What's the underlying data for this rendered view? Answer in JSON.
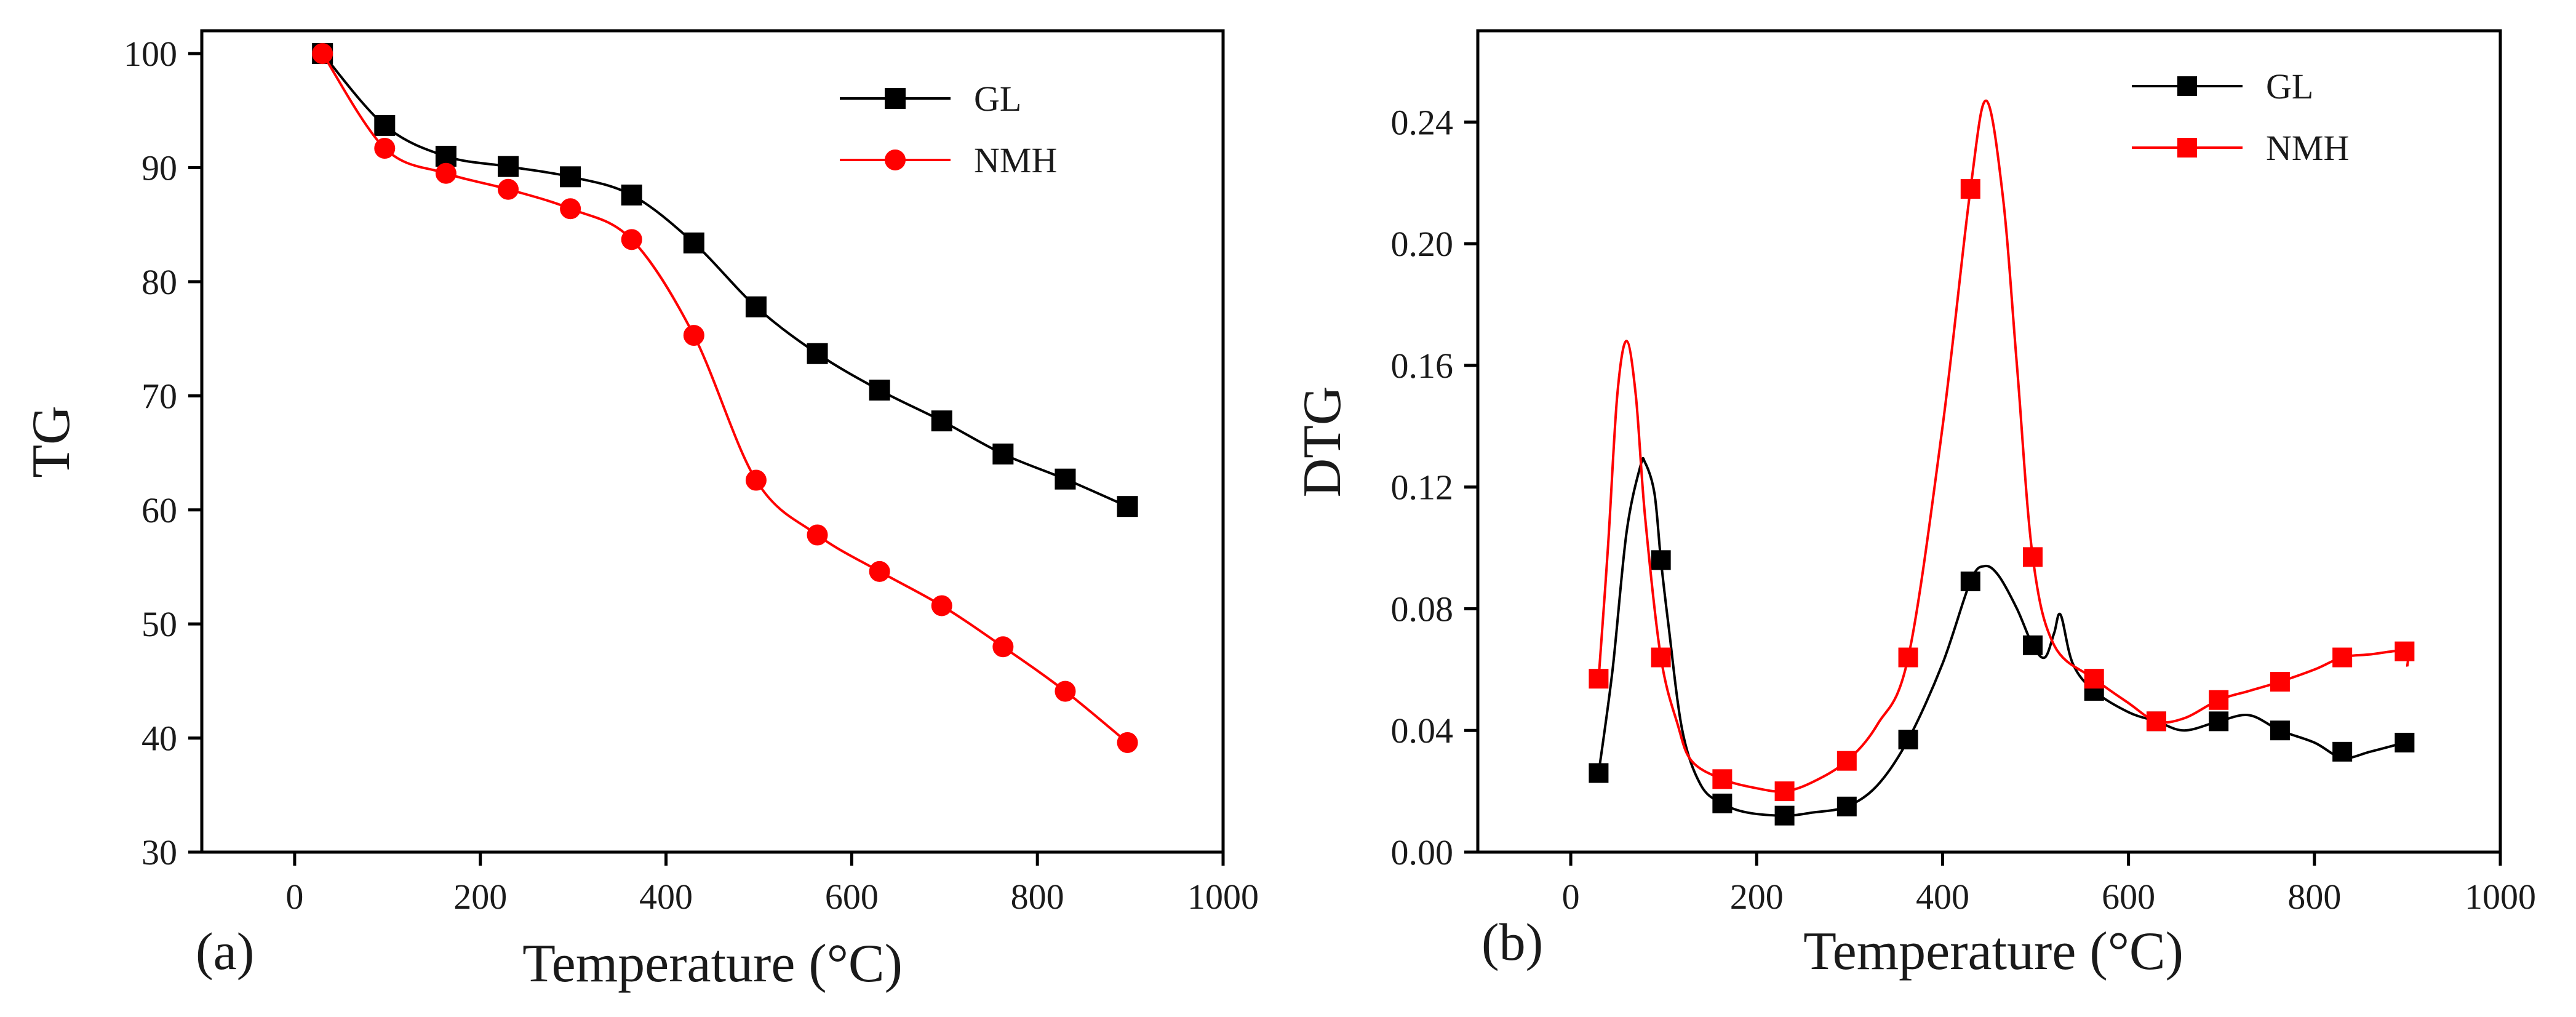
{
  "chart_data": [
    {
      "id": "a",
      "type": "line",
      "panel_label": "(a)",
      "xlabel": "Temperature (°C)",
      "ylabel": "TG",
      "xlim": [
        -100,
        1000
      ],
      "ylim": [
        30,
        102
      ],
      "x_ticks": [
        0,
        200,
        400,
        600,
        800,
        1000
      ],
      "y_ticks": [
        30,
        40,
        50,
        60,
        70,
        80,
        90,
        100
      ],
      "legend_position": "top-right",
      "series": [
        {
          "name": "GL",
          "color": "#000000",
          "marker": "square",
          "x": [
            30,
            97,
            163,
            230,
            297,
            363,
            430,
            497,
            563,
            630,
            697,
            763,
            830,
            897
          ],
          "y": [
            100,
            93.7,
            91.0,
            90.1,
            89.2,
            87.6,
            83.4,
            77.8,
            73.7,
            70.5,
            67.8,
            64.9,
            62.7,
            60.3
          ]
        },
        {
          "name": "NMH",
          "color": "#ff0000",
          "marker": "circle",
          "x": [
            30,
            97,
            163,
            230,
            297,
            363,
            430,
            497,
            563,
            630,
            697,
            763,
            830,
            897
          ],
          "y": [
            100,
            91.7,
            89.5,
            88.1,
            86.4,
            83.7,
            75.3,
            62.6,
            57.8,
            54.6,
            51.6,
            48.0,
            44.1,
            39.6
          ]
        }
      ]
    },
    {
      "id": "b",
      "type": "line",
      "panel_label": "(b)",
      "xlabel": "Temperature (°C)",
      "ylabel": "DTG",
      "xlim": [
        -100,
        1000
      ],
      "ylim": [
        0,
        0.27
      ],
      "x_ticks": [
        0,
        200,
        400,
        600,
        800,
        1000
      ],
      "y_ticks": [
        0.0,
        0.04,
        0.08,
        0.12,
        0.16,
        0.2,
        0.24
      ],
      "y_tick_labels": [
        "0.00",
        "0.04",
        "0.08",
        "0.12",
        "0.16",
        "0.20",
        "0.24"
      ],
      "legend_position": "top-right",
      "series": [
        {
          "name": "GL",
          "color": "#000000",
          "marker": "square",
          "x": [
            30,
            97,
            163,
            230,
            297,
            363,
            430,
            497,
            563,
            630,
            697,
            763,
            830,
            897
          ],
          "y": [
            0.026,
            0.096,
            0.016,
            0.012,
            0.015,
            0.037,
            0.089,
            0.068,
            0.053,
            0.043,
            0.043,
            0.04,
            0.033,
            0.036
          ],
          "curve_x": [
            30,
            45,
            60,
            75,
            80,
            90,
            97,
            105,
            120,
            140,
            163,
            190,
            230,
            260,
            297,
            330,
            363,
            400,
            430,
            445,
            460,
            480,
            497,
            510,
            520,
            527,
            540,
            563,
            600,
            630,
            660,
            697,
            730,
            763,
            800,
            830,
            860,
            897
          ],
          "curve_y": [
            0.026,
            0.06,
            0.105,
            0.127,
            0.128,
            0.118,
            0.096,
            0.075,
            0.04,
            0.022,
            0.016,
            0.013,
            0.012,
            0.013,
            0.015,
            0.022,
            0.037,
            0.062,
            0.089,
            0.094,
            0.091,
            0.08,
            0.068,
            0.064,
            0.072,
            0.078,
            0.062,
            0.053,
            0.046,
            0.043,
            0.04,
            0.043,
            0.045,
            0.04,
            0.036,
            0.031,
            0.033,
            0.036
          ]
        },
        {
          "name": "NMH",
          "color": "#ff0000",
          "marker": "square",
          "x": [
            30,
            97,
            163,
            230,
            297,
            363,
            430,
            497,
            563,
            630,
            697,
            763,
            830,
            897
          ],
          "y": [
            0.057,
            0.064,
            0.024,
            0.02,
            0.03,
            0.064,
            0.218,
            0.097,
            0.057,
            0.043,
            0.05,
            0.056,
            0.064,
            0.066
          ],
          "curve_x": [
            30,
            40,
            50,
            60,
            70,
            80,
            97,
            115,
            130,
            163,
            200,
            230,
            260,
            297,
            330,
            363,
            400,
            430,
            447,
            465,
            480,
            497,
            520,
            563,
            600,
            630,
            660,
            697,
            730,
            763,
            800,
            830,
            860,
            897,
            900
          ],
          "curve_y": [
            0.057,
            0.1,
            0.15,
            0.168,
            0.15,
            0.11,
            0.064,
            0.042,
            0.03,
            0.024,
            0.021,
            0.02,
            0.023,
            0.03,
            0.042,
            0.064,
            0.14,
            0.218,
            0.247,
            0.215,
            0.16,
            0.097,
            0.068,
            0.057,
            0.049,
            0.043,
            0.044,
            0.05,
            0.053,
            0.056,
            0.06,
            0.064,
            0.065,
            0.066,
            0.061
          ]
        }
      ]
    }
  ]
}
